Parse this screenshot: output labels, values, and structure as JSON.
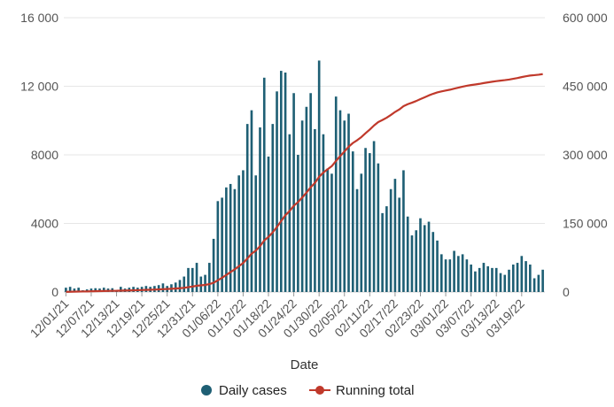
{
  "chart_data": {
    "type": "bar+line",
    "xlabel": "Date",
    "x_tick_labels": [
      "12/01/21",
      "12/07/21",
      "12/13/21",
      "12/19/21",
      "12/25/21",
      "12/31/21",
      "01/06/22",
      "01/12/22",
      "01/18/22",
      "01/24/22",
      "01/30/22",
      "02/05/22",
      "02/11/22",
      "02/17/22",
      "02/23/22",
      "03/01/22",
      "03/07/22",
      "03/13/22",
      "03/19/22"
    ],
    "x_start_label": "12/01/21",
    "y_left": {
      "ylim": [
        0,
        16000
      ],
      "ticks": [
        0,
        4000,
        8000,
        12000,
        16000
      ],
      "tick_labels": [
        "0",
        "4000",
        "8000",
        "12 000",
        "16 000"
      ]
    },
    "y_right": {
      "ylim": [
        0,
        600000
      ],
      "ticks": [
        0,
        150000,
        300000,
        450000,
        600000
      ],
      "tick_labels": [
        "0",
        "150 000",
        "300 000",
        "450 000",
        "600 000"
      ]
    },
    "grid": true,
    "legend_position": "bottom-center",
    "series": [
      {
        "name": "Daily cases",
        "type": "bar",
        "axis": "left",
        "color": "#1e5f74",
        "values": [
          250,
          300,
          200,
          250,
          100,
          150,
          200,
          220,
          200,
          250,
          200,
          220,
          100,
          300,
          200,
          250,
          300,
          250,
          300,
          350,
          300,
          350,
          400,
          500,
          350,
          450,
          550,
          700,
          900,
          1400,
          1400,
          1700,
          900,
          1000,
          1700,
          3100,
          5300,
          5500,
          6100,
          6300,
          6000,
          6800,
          7100,
          9800,
          10600,
          6800,
          9600,
          12500,
          7900,
          9800,
          11700,
          12900,
          12800,
          9200,
          11600,
          8000,
          10000,
          10800,
          11600,
          9500,
          13500,
          9200,
          7200,
          6900,
          11400,
          10600,
          10000,
          10400,
          8200,
          6000,
          6900,
          8400,
          8100,
          8800,
          7500,
          4600,
          5000,
          6000,
          6600,
          5500,
          7100,
          4400,
          3300,
          3600,
          4300,
          3900,
          4100,
          3500,
          3000,
          2200,
          1900,
          1900,
          2400,
          2100,
          2200,
          1900,
          1600,
          1200,
          1400,
          1700,
          1500,
          1400,
          1400,
          1100,
          1000,
          1300,
          1600,
          1700,
          2100,
          1800,
          1600,
          800,
          1000,
          1300
        ]
      },
      {
        "name": "Running total",
        "type": "line",
        "axis": "right",
        "color": "#c0392b",
        "values": [
          250,
          550,
          750,
          1000,
          1100,
          1250,
          1450,
          1670,
          1870,
          2120,
          2320,
          2540,
          2640,
          2940,
          3140,
          3390,
          3690,
          3940,
          4240,
          4590,
          4890,
          5240,
          5640,
          6140,
          6490,
          6940,
          7490,
          8190,
          9090,
          10490,
          11890,
          13590,
          14490,
          15490,
          17190,
          20290,
          25590,
          31090,
          37190,
          43490,
          49490,
          56290,
          63390,
          73190,
          83790,
          90590,
          100190,
          112690,
          120590,
          130390,
          142090,
          154990,
          167790,
          176990,
          188590,
          196590,
          206590,
          217390,
          228990,
          238490,
          251990,
          261190,
          268390,
          275290,
          286690,
          297290,
          307290,
          317690,
          325890,
          331890,
          338790,
          347190,
          355290,
          364090,
          371590,
          376190,
          381190,
          387190,
          393790,
          399290,
          406390,
          410790,
          414090,
          417690,
          421990,
          425890,
          429990,
          433490,
          436490,
          438690,
          440590,
          442490,
          444890,
          446990,
          449190,
          451090,
          452690,
          453890,
          455290,
          456990,
          458490,
          459890,
          461290,
          462390,
          463390,
          464690,
          466290,
          467990,
          470090,
          471890,
          473490,
          474290,
          475290,
          476590
        ]
      }
    ]
  }
}
